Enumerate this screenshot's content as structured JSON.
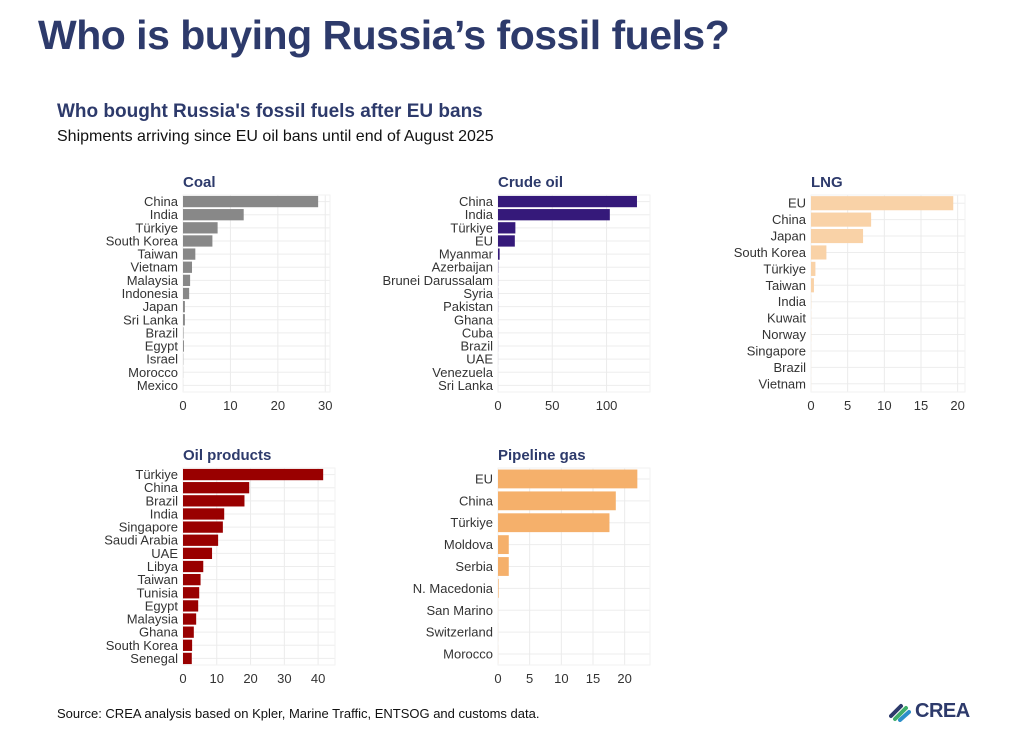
{
  "title": "Who is buying Russia’s fossil fuels?",
  "subtitle": "Who bought Russia's fossil fuels after EU bans",
  "caption": "Shipments arriving since EU oil bans until end of August 2025",
  "source": "Source: CREA analysis based on Kpler, Marine Traffic, ENTSOG and customs data.",
  "logo_text": "CREA",
  "chart_data": [
    {
      "type": "bar",
      "orientation": "horizontal",
      "title": "Coal",
      "color": "#888888",
      "categories": [
        "China",
        "India",
        "Türkiye",
        "South Korea",
        "Taiwan",
        "Vietnam",
        "Malaysia",
        "Indonesia",
        "Japan",
        "Sri Lanka",
        "Brazil",
        "Egypt",
        "Israel",
        "Morocco",
        "Mexico"
      ],
      "values": [
        28.5,
        12.8,
        7.3,
        6.2,
        2.6,
        1.9,
        1.5,
        1.3,
        0.4,
        0.4,
        0.1,
        0.2,
        0.05,
        0.02,
        0.01
      ],
      "xlim": [
        0,
        31
      ],
      "ticks": [
        0,
        10,
        20,
        30
      ],
      "grid": true
    },
    {
      "type": "bar",
      "orientation": "horizontal",
      "title": "Crude oil",
      "color": "#35197a",
      "categories": [
        "China",
        "India",
        "Türkiye",
        "EU",
        "Myanmar",
        "Azerbaijan",
        "Brunei Darussalam",
        "Syria",
        "Pakistan",
        "Ghana",
        "Cuba",
        "Brazil",
        "UAE",
        "Venezuela",
        "Sri Lanka"
      ],
      "values": [
        128,
        103,
        16,
        15.5,
        1.5,
        0.2,
        0.1,
        0.1,
        0.1,
        0.05,
        0.05,
        0.05,
        0.03,
        0.02,
        0.01
      ],
      "xlim": [
        0,
        140
      ],
      "ticks": [
        0,
        50,
        100
      ],
      "grid": true
    },
    {
      "type": "bar",
      "orientation": "horizontal",
      "title": "LNG",
      "color": "#f9d2a7",
      "categories": [
        "EU",
        "China",
        "Japan",
        "South Korea",
        "Türkiye",
        "Taiwan",
        "India",
        "Kuwait",
        "Norway",
        "Singapore",
        "Brazil",
        "Vietnam"
      ],
      "values": [
        19.4,
        8.2,
        7.1,
        2.1,
        0.6,
        0.4,
        0.03,
        0.02,
        0.02,
        0.01,
        0.01,
        0.01
      ],
      "xlim": [
        0,
        21
      ],
      "ticks": [
        0,
        5,
        10,
        15,
        20
      ],
      "grid": true
    },
    {
      "type": "bar",
      "orientation": "horizontal",
      "title": "Oil products",
      "color": "#990000",
      "categories": [
        "Türkiye",
        "China",
        "Brazil",
        "India",
        "Singapore",
        "Saudi Arabia",
        "UAE",
        "Libya",
        "Taiwan",
        "Tunisia",
        "Egypt",
        "Malaysia",
        "Ghana",
        "South Korea",
        "Senegal"
      ],
      "values": [
        41.5,
        19.6,
        18.2,
        12.2,
        11.8,
        10.4,
        8.6,
        6.0,
        5.2,
        4.8,
        4.5,
        3.9,
        3.2,
        2.7,
        2.6
      ],
      "xlim": [
        0,
        45
      ],
      "ticks": [
        0,
        10,
        20,
        30,
        40
      ],
      "grid": true
    },
    {
      "type": "bar",
      "orientation": "horizontal",
      "title": "Pipeline gas",
      "color": "#f5b06b",
      "categories": [
        "EU",
        "China",
        "Türkiye",
        "Moldova",
        "Serbia",
        "N. Macedonia",
        "San Marino",
        "Switzerland",
        "Morocco"
      ],
      "values": [
        22,
        18.6,
        17.6,
        1.7,
        1.7,
        0.1,
        0.01,
        0.01,
        0.01
      ],
      "xlim": [
        0,
        24
      ],
      "ticks": [
        0,
        5,
        10,
        15,
        20
      ],
      "grid": true
    }
  ]
}
